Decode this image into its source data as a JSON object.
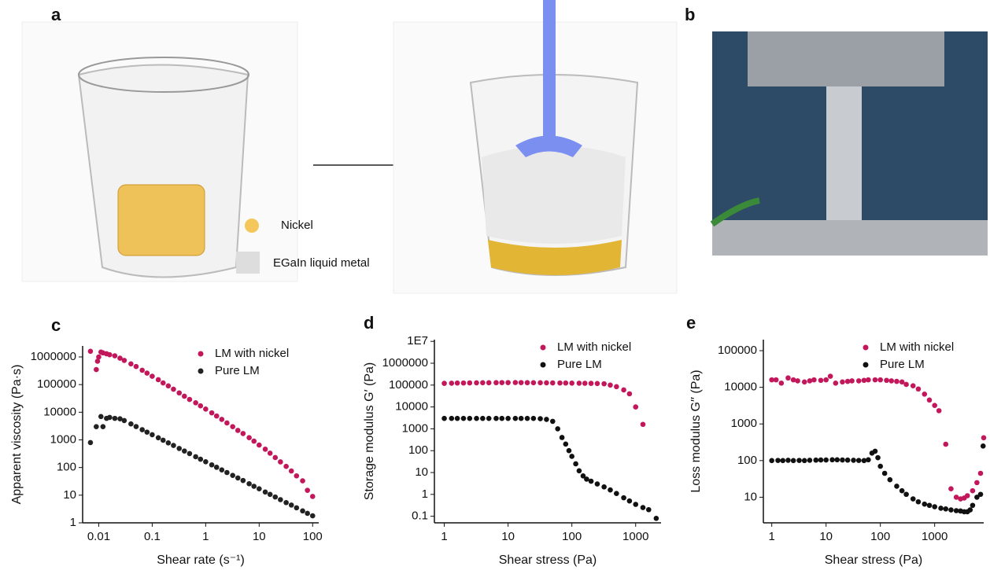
{
  "figure": {
    "panel_a": {
      "label": "a",
      "legend": [
        "Nickel",
        "EGaIn liquid metal"
      ]
    },
    "panel_b": {
      "label": "b"
    }
  },
  "chart_data": [
    {
      "type": "scatter",
      "panel_label": "c",
      "xlabel": "Shear rate (s⁻¹)",
      "ylabel": "Apparent viscosity (Pa·s)",
      "xlog": true,
      "ylog": true,
      "xlim": [
        0.005,
        130
      ],
      "ylim": [
        1,
        2500000
      ],
      "xticks": [
        0.01,
        0.1,
        1,
        10,
        100
      ],
      "yticks": [
        1,
        10,
        100,
        1000,
        10000,
        100000,
        1000000
      ],
      "legend_position": "upper right",
      "series": [
        {
          "name": "LM with nickel",
          "color": "#c2185b",
          "x": [
            0.007,
            0.009,
            0.0095,
            0.01,
            0.011,
            0.012,
            0.014,
            0.016,
            0.02,
            0.025,
            0.03,
            0.04,
            0.05,
            0.065,
            0.08,
            0.1,
            0.13,
            0.16,
            0.2,
            0.25,
            0.32,
            0.4,
            0.5,
            0.65,
            0.8,
            1,
            1.3,
            1.6,
            2,
            2.5,
            3.2,
            4,
            5,
            6.5,
            8,
            10,
            13,
            16,
            20,
            25,
            32,
            40,
            50,
            65,
            80,
            100
          ],
          "values": [
            1600000,
            350000,
            700000,
            1000000,
            1500000,
            1400000,
            1300000,
            1200000,
            1100000,
            900000,
            750000,
            560000,
            450000,
            330000,
            260000,
            200000,
            150000,
            115000,
            90000,
            68000,
            50000,
            38000,
            29000,
            22000,
            17000,
            13000,
            9500,
            7300,
            5500,
            4100,
            3000,
            2200,
            1700,
            1200,
            900,
            650,
            460,
            330,
            230,
            160,
            110,
            75,
            50,
            33,
            15,
            9
          ]
        },
        {
          "name": "Pure LM",
          "color": "#222222",
          "x": [
            0.007,
            0.009,
            0.011,
            0.012,
            0.014,
            0.016,
            0.02,
            0.025,
            0.03,
            0.04,
            0.05,
            0.065,
            0.08,
            0.1,
            0.13,
            0.16,
            0.2,
            0.25,
            0.32,
            0.4,
            0.5,
            0.65,
            0.8,
            1,
            1.3,
            1.6,
            2,
            2.5,
            3.2,
            4,
            5,
            6.5,
            8,
            10,
            13,
            16,
            20,
            25,
            32,
            40,
            50,
            65,
            80,
            100
          ],
          "values": [
            800,
            3000,
            7000,
            3000,
            6000,
            6500,
            6000,
            5800,
            5000,
            3770,
            3030,
            2340,
            1910,
            1540,
            1190,
            970,
            780,
            630,
            490,
            395,
            320,
            245,
            200,
            162,
            125,
            102,
            82,
            66,
            52,
            42,
            34,
            26,
            21,
            17,
            13,
            10.7,
            8.6,
            6.9,
            5.4,
            4.4,
            3.5,
            2.7,
            2.2,
            1.8
          ]
        }
      ]
    },
    {
      "type": "scatter",
      "panel_label": "d",
      "xlabel": "Shear stress (Pa)",
      "ylabel": "Storage modulus G′ (Pa)",
      "xlog": true,
      "ylog": true,
      "xlim": [
        0.7,
        2500
      ],
      "ylim": [
        0.05,
        12000000
      ],
      "xticks": [
        1,
        10,
        100,
        1000
      ],
      "yticks": [
        0.1,
        1,
        10,
        100,
        1000,
        10000,
        100000,
        1000000,
        {
          "value": 10000000,
          "label": "1E7"
        }
      ],
      "legend_position": "upper right",
      "series": [
        {
          "name": "LM with nickel",
          "color": "#c2185b",
          "x": [
            1,
            1.3,
            1.6,
            2,
            2.5,
            3.2,
            4,
            5,
            6.5,
            8,
            10,
            13,
            16,
            20,
            25,
            32,
            40,
            50,
            65,
            80,
            100,
            130,
            160,
            200,
            250,
            320,
            400,
            500,
            650,
            800,
            1000,
            1300
          ],
          "values": [
            120000,
            122000,
            124000,
            125000,
            126000,
            127000,
            128000,
            128000,
            129000,
            130000,
            130000,
            131000,
            130000,
            129000,
            128000,
            128000,
            127000,
            126000,
            125000,
            124000,
            123000,
            122000,
            121000,
            120000,
            118000,
            115000,
            100000,
            85000,
            60000,
            40000,
            10000,
            1600
          ]
        },
        {
          "name": "Pure LM",
          "color": "#111111",
          "x": [
            1,
            1.3,
            1.6,
            2,
            2.5,
            3.2,
            4,
            5,
            6.5,
            8,
            10,
            13,
            16,
            20,
            25,
            32,
            40,
            50,
            60,
            70,
            80,
            90,
            100,
            115,
            130,
            150,
            170,
            200,
            250,
            320,
            400,
            500,
            650,
            800,
            1000,
            1300,
            1600,
            2100
          ],
          "values": [
            3000,
            3000,
            3000,
            3000,
            3000,
            3000,
            3000,
            3000,
            3000,
            3000,
            3000,
            3000,
            3000,
            3000,
            3000,
            2900,
            2700,
            2200,
            1000,
            400,
            200,
            100,
            55,
            25,
            12,
            7,
            5,
            4,
            3,
            2.2,
            1.6,
            1.1,
            0.7,
            0.5,
            0.35,
            0.25,
            0.2,
            0.08
          ]
        }
      ]
    },
    {
      "type": "scatter",
      "panel_label": "e",
      "xlabel": "Shear stress (Pa)",
      "ylabel": "Loss modulus G′′ (Pa)",
      "xlog": true,
      "ylog": true,
      "xlim": [
        0.7,
        8000
      ],
      "ylim": [
        2,
        200000
      ],
      "xticks": [
        1,
        10,
        100,
        1000
      ],
      "yticks": [
        10,
        100,
        1000,
        10000,
        100000
      ],
      "legend_position": "upper right",
      "series": [
        {
          "name": "LM with nickel",
          "color": "#c2185b",
          "x": [
            1,
            1.2,
            1.5,
            2,
            2.5,
            3,
            4,
            5,
            6,
            8,
            10,
            12,
            15,
            20,
            25,
            30,
            40,
            50,
            60,
            80,
            100,
            130,
            160,
            200,
            250,
            300,
            400,
            500,
            650,
            800,
            1000,
            1200,
            1600,
            2000,
            2500,
            3000,
            3500,
            4000,
            5000,
            6000,
            7000,
            8000
          ],
          "values": [
            16000,
            16000,
            13000,
            18000,
            16000,
            15000,
            14000,
            15000,
            16000,
            15500,
            16000,
            20000,
            13000,
            14000,
            14500,
            15000,
            15000,
            15500,
            16000,
            16000,
            16000,
            15500,
            15000,
            14500,
            14000,
            12000,
            11000,
            9000,
            6500,
            4500,
            3200,
            2300,
            280,
            17,
            10,
            9,
            9.5,
            11,
            15,
            25,
            45,
            420
          ]
        },
        {
          "name": "Pure LM",
          "color": "#111111",
          "x": [
            1,
            1.3,
            1.6,
            2,
            2.5,
            3.2,
            4,
            5,
            6.5,
            8,
            10,
            13,
            16,
            20,
            25,
            32,
            40,
            50,
            60,
            70,
            80,
            90,
            100,
            120,
            150,
            200,
            250,
            300,
            400,
            500,
            650,
            800,
            1000,
            1300,
            1600,
            2000,
            2500,
            3000,
            3500,
            4000,
            4500,
            5000,
            6000,
            7000,
            7800
          ],
          "values": [
            100,
            101,
            100,
            102,
            100,
            101,
            100,
            102,
            103,
            104,
            104,
            105,
            105,
            104,
            103,
            102,
            101,
            100,
            105,
            160,
            180,
            120,
            70,
            45,
            30,
            20,
            15,
            12,
            9,
            7.5,
            6.5,
            6,
            5.5,
            5,
            4.8,
            4.5,
            4.3,
            4.2,
            4,
            4,
            4.5,
            6,
            10,
            12,
            250
          ]
        }
      ]
    }
  ]
}
